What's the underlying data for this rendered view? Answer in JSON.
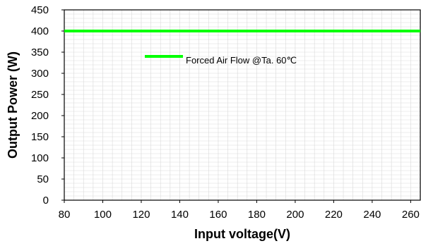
{
  "chart_data": {
    "type": "line",
    "xlabel": "Input voltage(V)",
    "ylabel": "Output Power (W)",
    "xlim": [
      80,
      265
    ],
    "ylim": [
      0,
      450
    ],
    "x_ticks": [
      80,
      100,
      120,
      140,
      160,
      180,
      200,
      220,
      240,
      260
    ],
    "y_ticks": [
      0,
      50,
      100,
      150,
      200,
      250,
      300,
      350,
      400,
      450
    ],
    "grid": true,
    "legend_position": "upper-middle",
    "series": [
      {
        "name": "Forced Air Flow @Ta. 60℃",
        "color": "#00ff00",
        "x": [
          80,
          265
        ],
        "y": [
          400,
          400
        ]
      }
    ]
  }
}
